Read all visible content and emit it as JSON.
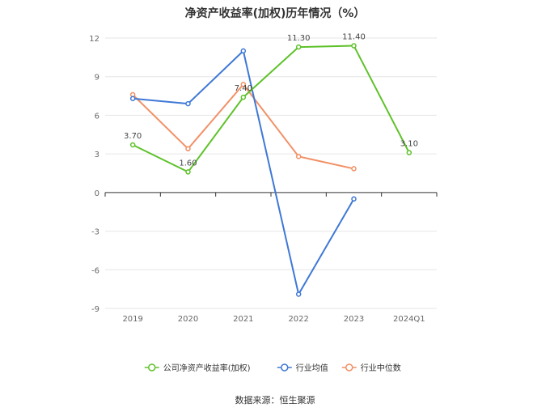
{
  "chart_data": {
    "type": "line",
    "title": "净资产收益率(加权)历年情况（%）",
    "categories": [
      "2019",
      "2020",
      "2021",
      "2022",
      "2023",
      "2024Q1"
    ],
    "ylim": [
      -9,
      12
    ],
    "yticks": [
      12,
      9,
      6,
      3,
      0,
      -3,
      -6,
      -9
    ],
    "grid": true,
    "legend_position": "bottom-center",
    "series": [
      {
        "name": "公司净资产收益率(加权)",
        "color": "#5ec22a",
        "values": [
          3.7,
          1.6,
          7.4,
          11.3,
          11.4,
          3.1
        ],
        "labels": [
          "3.70",
          "1.60",
          "7.40",
          "11.30",
          "11.40",
          "3.10"
        ]
      },
      {
        "name": "行业均值",
        "color": "#3f78d6",
        "values": [
          7.3,
          6.9,
          11.0,
          -7.9,
          -0.5,
          null
        ]
      },
      {
        "name": "行业中位数",
        "color": "#f29066",
        "values": [
          7.6,
          3.4,
          8.4,
          2.8,
          1.85,
          null
        ]
      }
    ]
  },
  "source": "数据来源：恒生聚源"
}
